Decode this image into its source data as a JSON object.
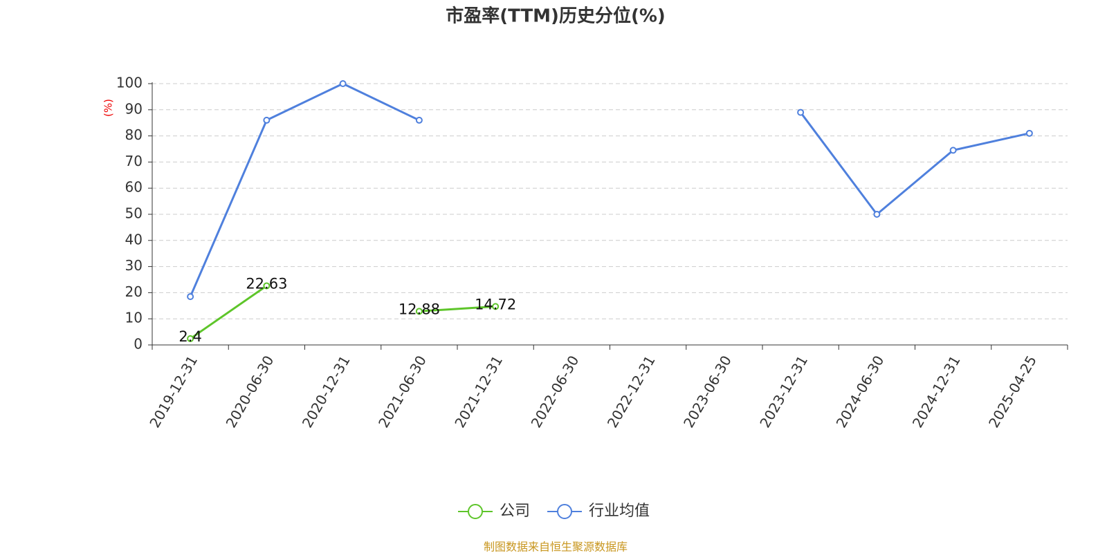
{
  "chart_data": {
    "type": "line",
    "title": "市盈率(TTM)历史分位(%)",
    "y_label": "(%)",
    "categories": [
      "2019-12-31",
      "2020-06-30",
      "2020-12-31",
      "2021-06-30",
      "2021-12-31",
      "2022-06-30",
      "2022-12-31",
      "2023-06-30",
      "2023-12-31",
      "2024-06-30",
      "2024-12-31",
      "2025-04-25"
    ],
    "series": [
      {
        "name": "公司",
        "color": "#5ec52a",
        "show_labels": true,
        "values": [
          2.4,
          22.63,
          null,
          12.88,
          14.72,
          null,
          null,
          null,
          null,
          null,
          null,
          null
        ]
      },
      {
        "name": "行业均值",
        "color": "#4f80dd",
        "show_labels": false,
        "values": [
          18.5,
          86,
          100,
          86,
          null,
          null,
          null,
          null,
          89,
          50,
          74.5,
          81
        ]
      }
    ],
    "ylim": [
      0,
      100
    ],
    "yticks": [
      0,
      10,
      20,
      30,
      40,
      50,
      60,
      70,
      80,
      90,
      100
    ],
    "grid": true,
    "legend": "bottom",
    "source": "制图数据来自恒生聚源数据库"
  }
}
